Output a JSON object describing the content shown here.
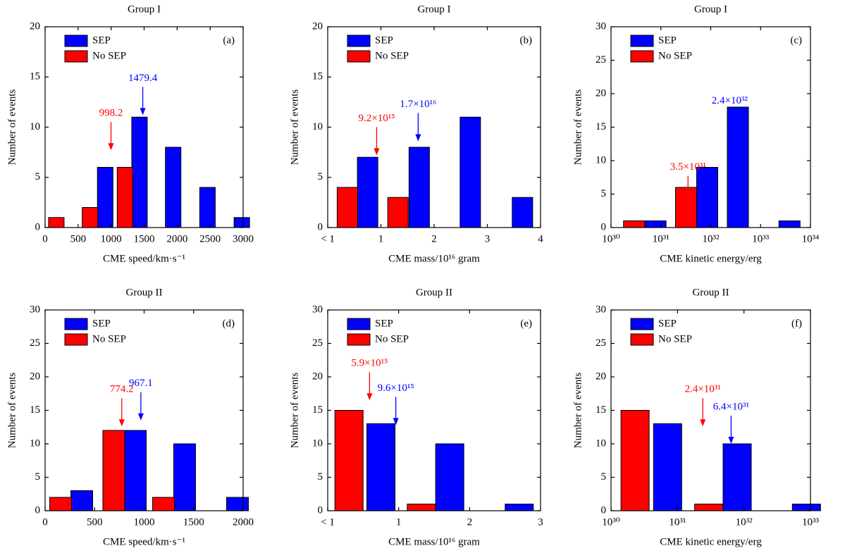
{
  "chart_data": [
    {
      "type": "bar",
      "title": "Group I",
      "panel_label": "(a)",
      "xlabel": "CME speed/km·s⁻¹",
      "ylabel": "Number of events",
      "xlim": [
        0,
        3000
      ],
      "xticks": [
        0,
        500,
        1000,
        1500,
        2000,
        2500,
        3000
      ],
      "ylim": [
        0,
        20
      ],
      "yticks": [
        0,
        5,
        10,
        15,
        20
      ],
      "series": [
        {
          "name": "SEP",
          "color": "#0000ff",
          "x": [
            910,
            1430,
            1940,
            2460,
            2980
          ],
          "values": [
            6,
            11,
            8,
            4,
            1
          ]
        },
        {
          "name": "No SEP",
          "color": "#ff0000",
          "x": [
            170,
            680,
            1210
          ],
          "values": [
            1,
            2,
            6
          ]
        }
      ],
      "annotations": [
        {
          "x": 998.2,
          "color": "#ff0000"
        },
        {
          "x": 1479.4,
          "color": "#0000ff"
        }
      ]
    },
    {
      "type": "bar",
      "title": "Group I",
      "panel_label": "(b)",
      "xlabel": "CME mass/10¹⁶ gram",
      "ylabel": "Number of events",
      "xlim": [
        0,
        4
      ],
      "xticks": [
        {
          "value": 0,
          "label": "< 1"
        },
        1,
        2,
        3,
        4
      ],
      "ylim": [
        0,
        20
      ],
      "yticks": [
        0,
        5,
        10,
        15,
        20
      ],
      "series": [
        {
          "name": "SEP",
          "color": "#0000ff",
          "x": [
            0.75,
            1.72,
            2.68,
            3.66
          ],
          "values": [
            7,
            8,
            11,
            3
          ]
        },
        {
          "name": "No SEP",
          "color": "#ff0000",
          "x": [
            0.37,
            1.32
          ],
          "values": [
            4,
            3
          ]
        }
      ],
      "annotations": [
        {
          "x": 0.92,
          "label": "9.2×10¹⁵",
          "color": "#ff0000"
        },
        {
          "x": 1.7,
          "label": "1.7×10¹⁶",
          "color": "#0000ff"
        }
      ]
    },
    {
      "type": "bar",
      "title": "Group I",
      "panel_label": "(c)",
      "xlabel": "CME kinetic energy/erg",
      "ylabel": "Number of events",
      "xlog": true,
      "xlim": [
        1e+30,
        1e+34
      ],
      "xticks": [
        {
          "value": 1e+30,
          "label": "10³⁰"
        },
        {
          "value": 1e+31,
          "label": "10³¹"
        },
        {
          "value": 1e+32,
          "label": "10³²"
        },
        {
          "value": 1e+33,
          "label": "10³³"
        },
        {
          "value": 1e+34,
          "label": "10³⁴"
        }
      ],
      "ylim": [
        0,
        30
      ],
      "yticks": [
        0,
        5,
        10,
        15,
        20,
        25,
        30
      ],
      "series": [
        {
          "name": "SEP",
          "color": "#0000ff",
          "x": [
            7.8e+30,
            8.5e+31,
            3.5e+32,
            3.8e+33
          ],
          "values": [
            1,
            9,
            18,
            1
          ]
        },
        {
          "name": "No SEP",
          "color": "#ff0000",
          "x": [
            2.9e+30,
            3.2e+31
          ],
          "values": [
            1,
            6
          ]
        }
      ],
      "annotations": [
        {
          "x": 3.5e+31,
          "label": "3.5×10³¹",
          "color": "#ff0000"
        },
        {
          "x": 2.4e+32,
          "label": "2.4×10³²",
          "color": "#0000ff"
        }
      ]
    },
    {
      "type": "bar",
      "title": "Group II",
      "panel_label": "(d)",
      "xlabel": "CME speed/km·s⁻¹",
      "ylabel": "Number of events",
      "xlim": [
        0,
        2000
      ],
      "xticks": [
        0,
        500,
        1000,
        1500,
        2000
      ],
      "ylim": [
        0,
        30
      ],
      "yticks": [
        0,
        5,
        10,
        15,
        20,
        25,
        30
      ],
      "series": [
        {
          "name": "SEP",
          "color": "#0000ff",
          "x": [
            370,
            911,
            1409,
            1943
          ],
          "values": [
            3,
            12,
            10,
            2
          ]
        },
        {
          "name": "No SEP",
          "color": "#ff0000",
          "x": [
            157,
            694,
            1196
          ],
          "values": [
            2,
            12,
            2
          ]
        }
      ],
      "annotations": [
        {
          "x": 774.2,
          "color": "#ff0000"
        },
        {
          "x": 967.1,
          "color": "#0000ff"
        }
      ]
    },
    {
      "type": "bar",
      "title": "Group II",
      "panel_label": "(e)",
      "xlabel": "CME mass/10¹⁶ gram",
      "ylabel": "Number of events",
      "xlim": [
        0,
        3
      ],
      "xticks": [
        {
          "value": 0,
          "label": "< 1"
        },
        1,
        2,
        3
      ],
      "ylim": [
        0,
        30
      ],
      "yticks": [
        0,
        5,
        10,
        15,
        20,
        25,
        30
      ],
      "series": [
        {
          "name": "SEP",
          "color": "#0000ff",
          "x": [
            0.75,
            1.72,
            2.7
          ],
          "values": [
            13,
            10,
            1
          ]
        },
        {
          "name": "No SEP",
          "color": "#ff0000",
          "x": [
            0.3,
            1.32
          ],
          "values": [
            15,
            1
          ]
        }
      ],
      "annotations": [
        {
          "x": 0.59,
          "label": "5.9×10¹⁵",
          "color": "#ff0000"
        },
        {
          "x": 0.96,
          "label": "9.6×10¹⁵",
          "color": "#0000ff"
        }
      ]
    },
    {
      "type": "bar",
      "title": "Group II",
      "panel_label": "(f)",
      "xlabel": "CME kinetic energy/erg",
      "ylabel": "Number of events",
      "xlog": true,
      "xlim": [
        1e+30,
        1e+33
      ],
      "xticks": [
        {
          "value": 1e+30,
          "label": "10³⁰"
        },
        {
          "value": 1e+31,
          "label": "10³¹"
        },
        {
          "value": 1e+32,
          "label": "10³²"
        },
        {
          "value": 1e+33,
          "label": "10³³"
        }
      ],
      "ylim": [
        0,
        30
      ],
      "yticks": [
        0,
        5,
        10,
        15,
        20,
        25,
        30
      ],
      "series": [
        {
          "name": "SEP",
          "color": "#0000ff",
          "x": [
            7.1e+30,
            7.9e+31,
            8.7e+32
          ],
          "values": [
            13,
            10,
            1
          ]
        },
        {
          "name": "No SEP",
          "color": "#ff0000",
          "x": [
            2.3e+30,
            2.95e+31
          ],
          "values": [
            15,
            1
          ]
        }
      ],
      "annotations": [
        {
          "x": 2.4e+31,
          "label": "2.4×10³¹",
          "color": "#ff0000"
        },
        {
          "x": 6.4e+31,
          "label": "6.4×10³¹",
          "color": "#0000ff"
        }
      ]
    }
  ]
}
